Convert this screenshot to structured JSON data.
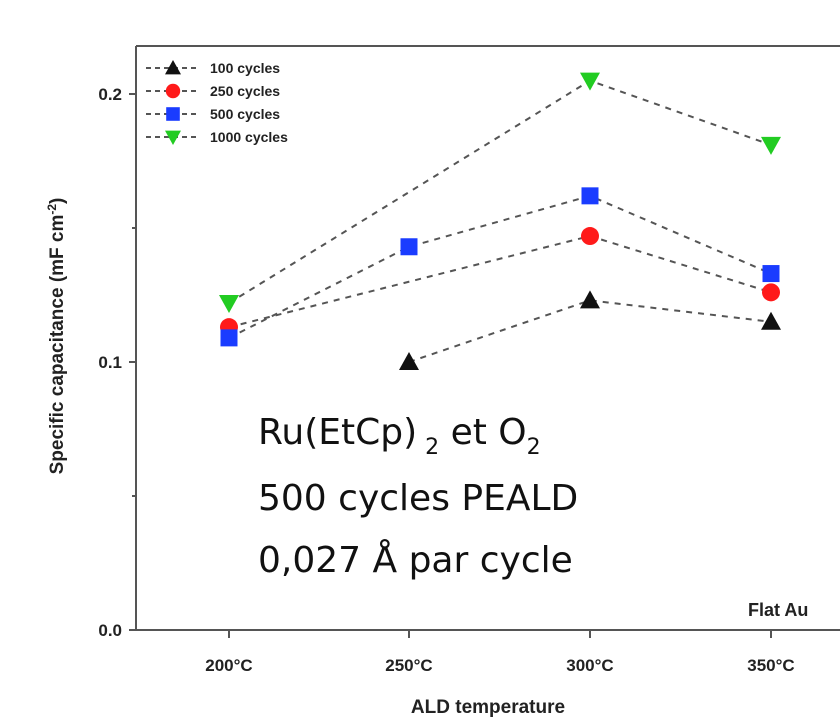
{
  "chart_data": {
    "type": "scatter",
    "xlabel": "ALD temperature",
    "ylabel": "Specific capacitance (mF cm",
    "ylabel_sup": "-2",
    "ylabel_close": ")",
    "categories": [
      "200°C",
      "250°C",
      "300°C",
      "350°C"
    ],
    "ylim": [
      0.0,
      0.2
    ],
    "yticks": [
      "0.0",
      "0.1",
      "0.2"
    ],
    "grid": false,
    "legend_position": "top-left",
    "series": [
      {
        "name": "100 cycles",
        "marker": "triangle-up",
        "color": "#111111",
        "values": [
          null,
          0.1,
          0.123,
          0.115
        ]
      },
      {
        "name": "250 cycles",
        "marker": "circle",
        "color": "#ff1a1a",
        "values": [
          0.113,
          null,
          0.147,
          0.126
        ]
      },
      {
        "name": "500 cycles",
        "marker": "square",
        "color": "#1a3cff",
        "values": [
          0.109,
          0.143,
          0.162,
          0.133
        ]
      },
      {
        "name": "1000 cycles",
        "marker": "triangle-down",
        "color": "#22cc22",
        "values": [
          0.122,
          null,
          0.205,
          0.181
        ]
      }
    ],
    "annotation": {
      "line1_main": "Ru(EtCp)",
      "line1_sub": "2",
      "line1_mid": " et O",
      "line1_sub2": "2",
      "line2": "500 cycles PEALD",
      "line3": "0,027 Å par cycle"
    },
    "corner_label": "Flat Au"
  }
}
